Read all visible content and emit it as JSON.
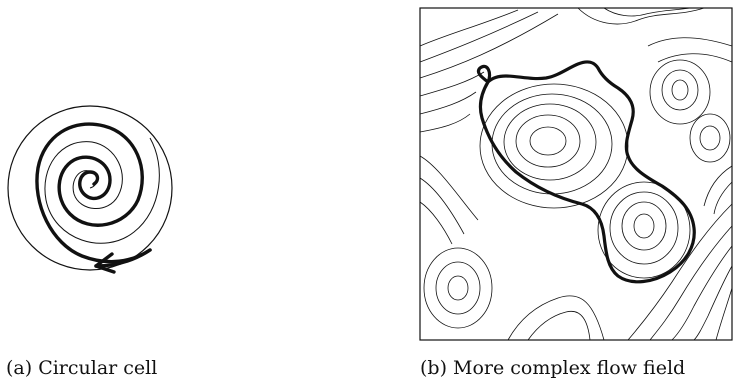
{
  "subfigures": [
    {
      "caption": "(a) Circular cell"
    },
    {
      "caption": "(b) More complex flow field"
    }
  ],
  "colors": {
    "ink": "#111111",
    "background": "#ffffff"
  }
}
